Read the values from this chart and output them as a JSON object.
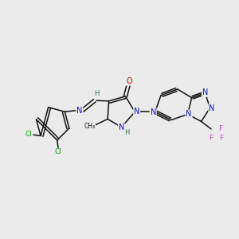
{
  "background_color": "#ebebeb",
  "figsize": [
    3.0,
    3.0
  ],
  "dpi": 100,
  "xlim": [
    0.0,
    10.0
  ],
  "ylim": [
    1.5,
    7.5
  ]
}
